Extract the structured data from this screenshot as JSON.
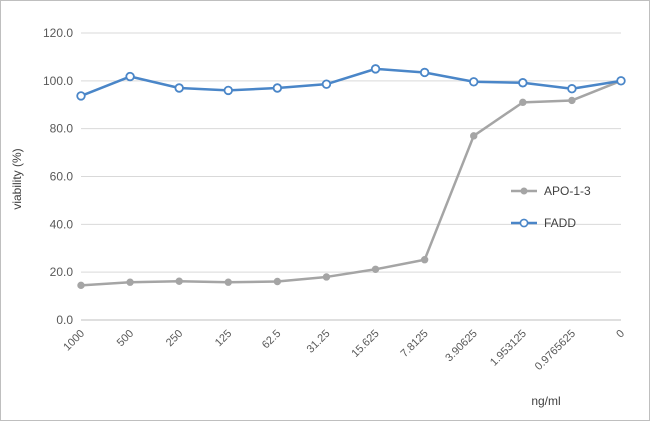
{
  "chart_data": {
    "type": "line",
    "title": "",
    "xlabel": "ng/ml",
    "ylabel": "viability (%)",
    "ylim": [
      0,
      120
    ],
    "yticks": [
      0,
      20,
      40,
      60,
      80,
      100,
      120
    ],
    "ytick_labels": [
      "0.0",
      "20.0",
      "40.0",
      "60.0",
      "80.0",
      "100.0",
      "120.0"
    ],
    "grid": true,
    "legend_position": "right",
    "categories": [
      "1000",
      "500",
      "250",
      "125",
      "62.5",
      "31.25",
      "15.625",
      "7.8125",
      "3.90625",
      "1.953125",
      "0.9765625",
      "0"
    ],
    "series": [
      {
        "name": "APO-1-3",
        "color": "#a5a5a5",
        "marker": "filled-circle",
        "values": [
          14.5,
          15.8,
          16.2,
          15.8,
          16.1,
          18.0,
          21.2,
          25.2,
          77.0,
          91.0,
          91.8,
          100.0
        ]
      },
      {
        "name": "FADD",
        "color": "#4a86c8",
        "marker": "hollow-circle",
        "values": [
          93.7,
          101.8,
          97.0,
          96.0,
          97.0,
          98.6,
          105.0,
          103.5,
          99.6,
          99.2,
          96.7,
          100.0
        ]
      }
    ]
  }
}
